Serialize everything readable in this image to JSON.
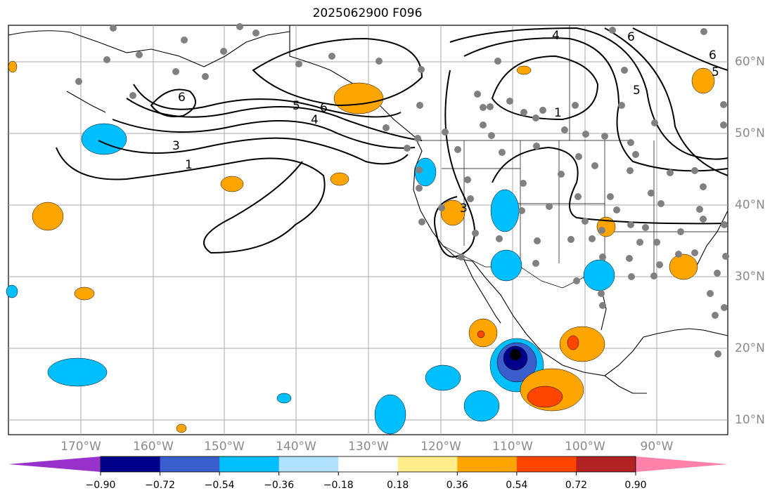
{
  "title": "2025062900 F096",
  "lon_labels": [
    "170°W",
    "160°W",
    "150°W",
    "140°W",
    "130°W",
    "120°W",
    "110°W",
    "100°W",
    "90°W"
  ],
  "lat_labels": [
    "60°N",
    "50°N",
    "40°N",
    "30°N",
    "20°N",
    "10°N"
  ],
  "contour_labels": [
    "6",
    "5",
    "6",
    "4",
    "3",
    "1",
    "4",
    "1",
    "6",
    "6",
    "5",
    "5",
    "3"
  ],
  "colorbar": {
    "colors": [
      "#9932cc",
      "#00008b",
      "#3a5fcd",
      "#00bfff",
      "#b0e2ff",
      "#ffffff",
      "#ffec8b",
      "#ffa500",
      "#ff4500",
      "#b22222",
      "#ff82ab"
    ],
    "tick_labels": [
      "−0.90",
      "−0.72",
      "−0.54",
      "−0.36",
      "−0.18",
      "0.18",
      "0.36",
      "0.54",
      "0.72",
      "0.90"
    ]
  }
}
